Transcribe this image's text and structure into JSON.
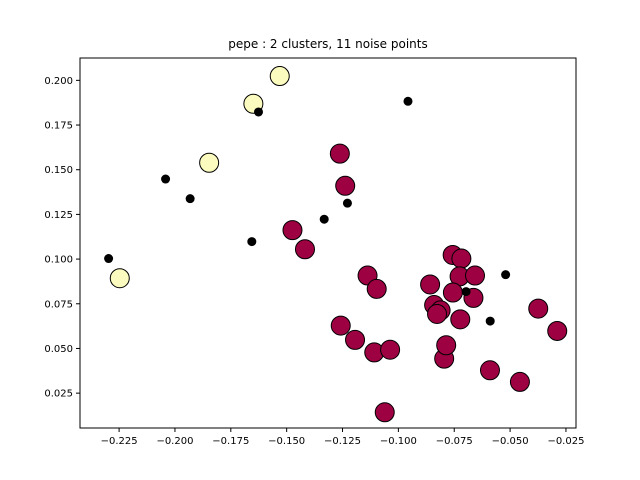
{
  "chart_data": {
    "type": "scatter",
    "title": "pepe : 2 clusters, 11 noise points",
    "xlabel": "",
    "ylabel": "",
    "xlim": [
      -0.2425,
      -0.0205
    ],
    "ylim": [
      0.0055,
      0.2125
    ],
    "grid": false,
    "xticks": [
      -0.225,
      -0.2,
      -0.175,
      -0.15,
      -0.125,
      -0.1,
      -0.075,
      -0.05,
      -0.025
    ],
    "xtick_labels": [
      "−0.225",
      "−0.200",
      "−0.175",
      "−0.150",
      "−0.125",
      "−0.100",
      "−0.075",
      "−0.050",
      "−0.025"
    ],
    "yticks": [
      0.025,
      0.05,
      0.075,
      0.1,
      0.125,
      0.15,
      0.175,
      0.2
    ],
    "ytick_labels": [
      "0.025",
      "0.050",
      "0.075",
      "0.100",
      "0.125",
      "0.150",
      "0.175",
      "0.200"
    ],
    "series": [
      {
        "color": "#fbfbbf",
        "marker": "large-circle",
        "points": [
          {
            "x": -0.2247,
            "y": 0.0893
          },
          {
            "x": -0.1847,
            "y": 0.1539
          },
          {
            "x": -0.1649,
            "y": 0.1869
          },
          {
            "x": -0.1531,
            "y": 0.2024
          }
        ]
      },
      {
        "color": "#9e0142",
        "marker": "large-circle",
        "points": [
          {
            "x": -0.1262,
            "y": 0.159
          },
          {
            "x": -0.1238,
            "y": 0.141
          },
          {
            "x": -0.1474,
            "y": 0.1162
          },
          {
            "x": -0.1418,
            "y": 0.1055
          },
          {
            "x": -0.1138,
            "y": 0.0908
          },
          {
            "x": -0.1097,
            "y": 0.0833
          },
          {
            "x": -0.1258,
            "y": 0.0628
          },
          {
            "x": -0.1194,
            "y": 0.0548
          },
          {
            "x": -0.1108,
            "y": 0.0478
          },
          {
            "x": -0.1037,
            "y": 0.0493
          },
          {
            "x": -0.1061,
            "y": 0.0143
          },
          {
            "x": -0.0858,
            "y": 0.0858
          },
          {
            "x": -0.084,
            "y": 0.0743
          },
          {
            "x": -0.0811,
            "y": 0.0713
          },
          {
            "x": -0.0827,
            "y": 0.0693
          },
          {
            "x": -0.0795,
            "y": 0.0443
          },
          {
            "x": -0.0786,
            "y": 0.0518
          },
          {
            "x": -0.0757,
            "y": 0.1023
          },
          {
            "x": -0.0718,
            "y": 0.1003
          },
          {
            "x": -0.0726,
            "y": 0.0903
          },
          {
            "x": -0.0756,
            "y": 0.0813
          },
          {
            "x": -0.0723,
            "y": 0.0663
          },
          {
            "x": -0.0657,
            "y": 0.0908
          },
          {
            "x": -0.0664,
            "y": 0.0783
          },
          {
            "x": -0.059,
            "y": 0.0378
          },
          {
            "x": -0.0456,
            "y": 0.0313
          },
          {
            "x": -0.0374,
            "y": 0.0723
          },
          {
            "x": -0.0289,
            "y": 0.0598
          }
        ]
      },
      {
        "color": "#000000",
        "marker": "small-dot",
        "points": [
          {
            "x": -0.2297,
            "y": 0.1003
          },
          {
            "x": -0.2042,
            "y": 0.1448
          },
          {
            "x": -0.1932,
            "y": 0.1338
          },
          {
            "x": -0.1656,
            "y": 0.1098
          },
          {
            "x": -0.1626,
            "y": 0.1823
          },
          {
            "x": -0.1332,
            "y": 0.1223
          },
          {
            "x": -0.1228,
            "y": 0.1313
          },
          {
            "x": -0.0957,
            "y": 0.1883
          },
          {
            "x": -0.0697,
            "y": 0.0818
          },
          {
            "x": -0.0589,
            "y": 0.0653
          },
          {
            "x": -0.052,
            "y": 0.0913
          }
        ]
      }
    ]
  }
}
